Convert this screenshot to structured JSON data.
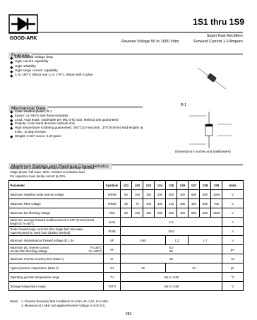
{
  "header": {
    "logo": "GOOD-ARK",
    "title": "1S1 thru 1S9",
    "subtitle": "Super Fast Rectifiers",
    "reverse_voltage": "Reverse Voltage 50 to 1000 Volts",
    "forward_current": "Forward Current 1.0 Ampere"
  },
  "features": {
    "title": "Features",
    "items": [
      "Low forward voltage drop",
      "High current capability",
      "High reliability",
      "High surge current capability",
      "I₀ to 150°C (Max) and I₀ to 175°C (Max) with Al glue"
    ]
  },
  "package": {
    "label": "R-1",
    "dimensions_note": "Dimensions in inches and (millimeters)"
  },
  "mechanical": {
    "title": "Mechanical Data",
    "items": [
      "Case: Molded plastic, R-1",
      "Epoxy: UL 94V-0 rate flame retardant",
      "Lead: Axial leads, solderable per MIL-STD-202, Method 208 guaranteed",
      "Polarity: Color band denotes cathode end",
      "High temperature soldering guaranteed: 250°C/10 seconds, .375\"(9.5mm) lead lengths at 5 lbs., (2.3kg) tension",
      "Weight: 0.007 ounce, 0.20 gram"
    ]
  },
  "ratings": {
    "title": "Maximum Ratings and Electrical Characteristics",
    "notes": [
      "Ratings at 25°C ambient temperature unless otherwise specified.",
      "Single phase, half wave, 60Hz, resistive or inductive load.",
      "For capacitive load, derate current by 20%."
    ]
  },
  "table": {
    "header": [
      "Parameter",
      "Symbols",
      "1S1",
      "1S2",
      "1S3",
      "1S4",
      "1S5",
      "1S6",
      "1S7",
      "1S8",
      "1S9",
      "Units"
    ],
    "rows": [
      [
        "Maximum repetitive peak reverse voltage",
        "VRRM",
        "50",
        "100",
        "150",
        "200",
        "300",
        "400",
        "600",
        "800",
        "1000",
        "V"
      ],
      [
        "Maximum RMS voltage",
        "VRMS",
        "35",
        "70",
        "105",
        "140",
        "210",
        "280",
        "420",
        "560",
        "700",
        "V"
      ],
      [
        "Maximum DC blocking voltage",
        "VDC",
        "50",
        "100",
        "150",
        "200",
        "300",
        "400",
        "600",
        "800",
        "1000",
        "V"
      ],
      [
        "Maximum average forward rectified current 0.375\" (9.5mm) lead length at TA=55°C",
        "I(AV)",
        "1.0",
        "A"
      ],
      [
        "Peak forward surge current 8.3ms single half sine-wave superimposed on rated load (JEDEC Method)",
        "IFSM",
        "30.0",
        "A"
      ],
      [
        "Maximum instantaneous forward voltage @ 1.0A",
        "VF",
        "0.95",
        "1.3",
        "1.7",
        "V"
      ],
      [
        "Maximum DC reverse current",
        "TA=25°C",
        "at rated DC blocking voltage",
        "TA=100°C",
        "IR",
        "5.0",
        "50",
        "μA"
      ],
      [
        "Maximum reverse recovery time (Note 1)",
        "trr",
        "35",
        "ns"
      ],
      [
        "Typical junction capacitance (Note 2)",
        "CJ",
        "15",
        "10",
        "pF"
      ],
      [
        "Operating junction temperature range",
        "TJ",
        "-55 to +150",
        "°C"
      ],
      [
        "Storage temperature range",
        "TSTG",
        "-55 to +150",
        "°C"
      ]
    ]
  },
  "notes": {
    "title": "Notes:",
    "items": [
      "1. Reverse Recovery Test Conditions: IF=0.5A, IR=1.0A, Irr=0.25A",
      "2. Measured at 1 MHz and applied Reverse Voltage of 4.0V D.C."
    ]
  },
  "page_number": "283"
}
